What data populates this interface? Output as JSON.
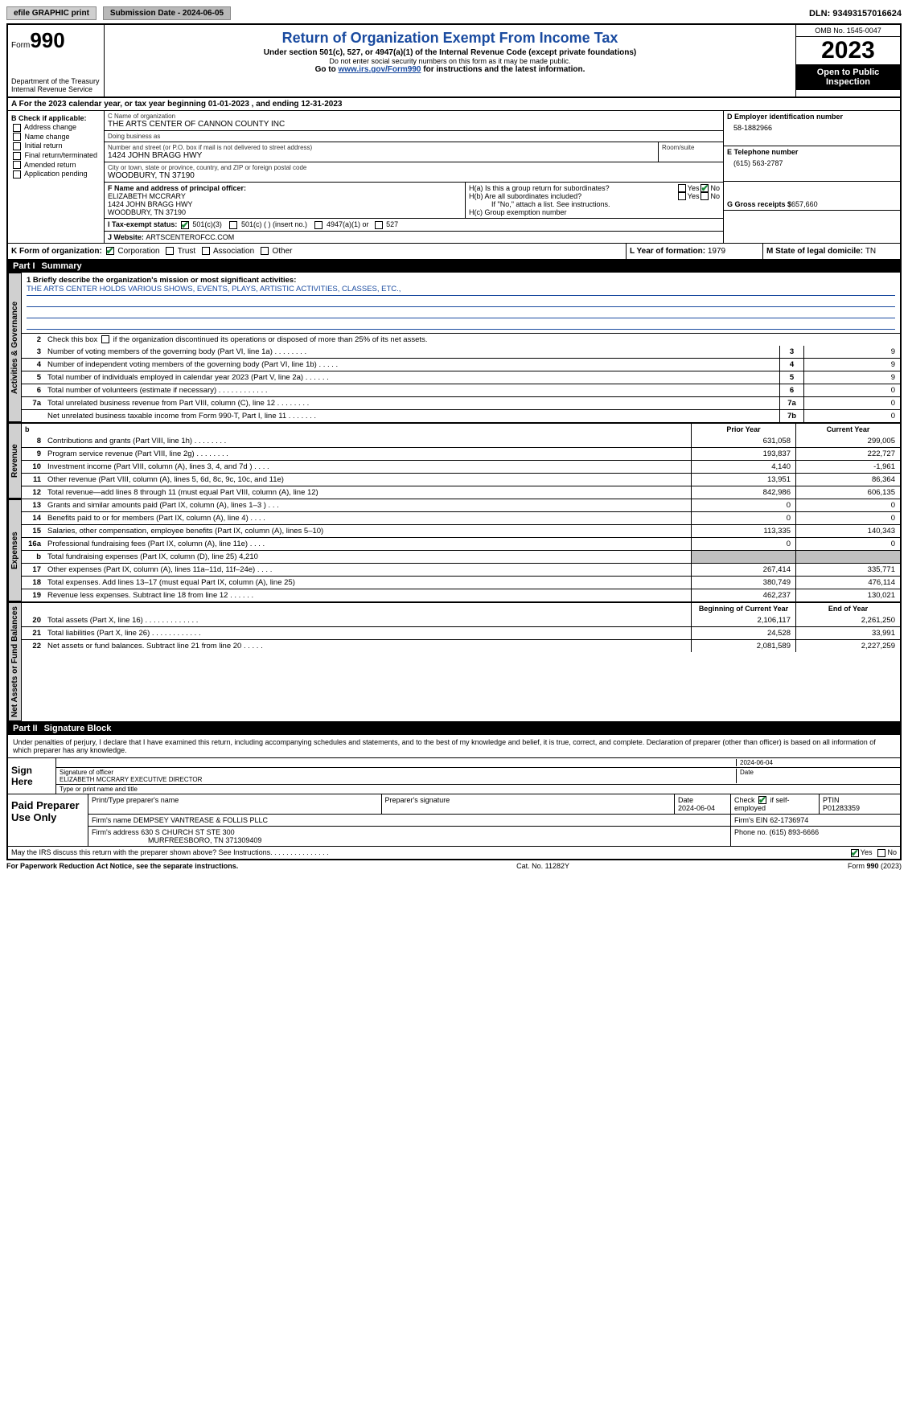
{
  "top": {
    "efile_btn": "efile GRAPHIC print",
    "submission_label": "Submission Date - 2024-06-05",
    "dln": "DLN: 93493157016624"
  },
  "header": {
    "form_word": "Form",
    "form_num": "990",
    "dept": "Department of the Treasury\nInternal Revenue Service",
    "title": "Return of Organization Exempt From Income Tax",
    "sub1": "Under section 501(c), 527, or 4947(a)(1) of the Internal Revenue Code (except private foundations)",
    "sub2": "Do not enter social security numbers on this form as it may be made public.",
    "goto_pre": "Go to ",
    "goto_link": "www.irs.gov/Form990",
    "goto_post": " for instructions and the latest information.",
    "omb": "OMB No. 1545-0047",
    "year": "2023",
    "open": "Open to Public Inspection"
  },
  "row_a": "A For the 2023 calendar year, or tax year beginning 01-01-2023     , and ending 12-31-2023",
  "col_b": {
    "title": "B Check if applicable:",
    "items": [
      "Address change",
      "Name change",
      "Initial return",
      "Final return/terminated",
      "Amended return",
      "Application pending"
    ]
  },
  "c": {
    "name_label": "C Name of organization",
    "name": "THE ARTS CENTER OF CANNON COUNTY INC",
    "dba_label": "Doing business as",
    "dba": "",
    "street_label": "Number and street (or P.O. box if mail is not delivered to street address)",
    "street": "1424 JOHN BRAGG HWY",
    "room_label": "Room/suite",
    "city_label": "City or town, state or province, country, and ZIP or foreign postal code",
    "city": "WOODBURY, TN  37190"
  },
  "right": {
    "d_label": "D Employer identification number",
    "d_val": "58-1882966",
    "e_label": "E Telephone number",
    "e_val": "(615) 563-2787",
    "g_label": "G Gross receipts $ ",
    "g_val": "657,660"
  },
  "f": {
    "label": "F  Name and address of principal officer:",
    "name": "ELIZABETH MCCRARY",
    "street": "1424 JOHN BRAGG HWY",
    "city": "WOODBURY, TN  37190"
  },
  "h": {
    "a_label": "H(a)  Is this a group return for subordinates?",
    "b_label": "H(b)  Are all subordinates included?",
    "b_note": "If \"No,\" attach a list. See instructions.",
    "c_label": "H(c)  Group exemption number "
  },
  "i": {
    "label": "I     Tax-exempt status:",
    "opts": [
      "501(c)(3)",
      "501(c) (  ) (insert no.)",
      "4947(a)(1) or",
      "527"
    ]
  },
  "j": {
    "label": "J     Website: ",
    "val": "ARTSCENTEROFCC.COM"
  },
  "k": {
    "label": "K Form of organization:",
    "opts": [
      "Corporation",
      "Trust",
      "Association",
      "Other"
    ]
  },
  "l": {
    "label": "L Year of formation: ",
    "val": "1979"
  },
  "m": {
    "label": "M State of legal domicile: ",
    "val": "TN"
  },
  "part1": {
    "num": "Part I",
    "title": "Summary"
  },
  "mission": {
    "q": "1   Briefly describe the organization's mission or most significant activities:",
    "text": "THE ARTS CENTER HOLDS VARIOUS SHOWS, EVENTS, PLAYS, ARTISTIC ACTIVITIES, CLASSES, ETC.,"
  },
  "line2": "Check this box       if the organization discontinued its operations or disposed of more than 25% of its net assets.",
  "sections": {
    "gov_label": "Activities & Governance",
    "rev_label": "Revenue",
    "exp_label": "Expenses",
    "net_label": "Net Assets or Fund Balances"
  },
  "gov_lines": [
    {
      "n": "3",
      "d": "Number of voting members of the governing body (Part VI, line 1a)   .    .    .    .    .    .    .    .",
      "b": "3",
      "v": "9"
    },
    {
      "n": "4",
      "d": "Number of independent voting members of the governing body (Part VI, line 1b)   .    .    .    .    .",
      "b": "4",
      "v": "9"
    },
    {
      "n": "5",
      "d": "Total number of individuals employed in calendar year 2023 (Part V, line 2a)   .    .    .    .    .    .",
      "b": "5",
      "v": "9"
    },
    {
      "n": "6",
      "d": "Total number of volunteers (estimate if necessary)    .    .    .    .    .    .    .    .    .    .    .    .",
      "b": "6",
      "v": "0"
    },
    {
      "n": "7a",
      "d": "Total unrelated business revenue from Part VIII, column (C), line 12   .    .    .    .    .    .    .    .",
      "b": "7a",
      "v": "0"
    },
    {
      "n": "",
      "d": "Net unrelated business taxable income from Form 990-T, Part I, line 11   .    .    .    .    .    .    .",
      "b": "7b",
      "v": "0"
    }
  ],
  "headers_py_cy": {
    "py": "Prior Year",
    "cy": "Current Year"
  },
  "rev_lines": [
    {
      "n": "8",
      "d": "Contributions and grants (Part VIII, line 1h)    .    .    .    .    .    .    .    .",
      "py": "631,058",
      "cy": "299,005"
    },
    {
      "n": "9",
      "d": "Program service revenue (Part VIII, line 2g)    .    .    .    .    .    .    .    .",
      "py": "193,837",
      "cy": "222,727"
    },
    {
      "n": "10",
      "d": "Investment income (Part VIII, column (A), lines 3, 4, and 7d )    .    .    .    .",
      "py": "4,140",
      "cy": "-1,961"
    },
    {
      "n": "11",
      "d": "Other revenue (Part VIII, column (A), lines 5, 6d, 8c, 9c, 10c, and 11e)",
      "py": "13,951",
      "cy": "86,364"
    },
    {
      "n": "12",
      "d": "Total revenue—add lines 8 through 11 (must equal Part VIII, column (A), line 12)",
      "py": "842,986",
      "cy": "606,135"
    }
  ],
  "exp_lines": [
    {
      "n": "13",
      "d": "Grants and similar amounts paid (Part IX, column (A), lines 1–3 )   .    .    .",
      "py": "0",
      "cy": "0"
    },
    {
      "n": "14",
      "d": "Benefits paid to or for members (Part IX, column (A), line 4)   .    .    .    .",
      "py": "0",
      "cy": "0"
    },
    {
      "n": "15",
      "d": "Salaries, other compensation, employee benefits (Part IX, column (A), lines 5–10)",
      "py": "113,335",
      "cy": "140,343"
    },
    {
      "n": "16a",
      "d": "Professional fundraising fees (Part IX, column (A), line 11e)   .    .    .    .",
      "py": "0",
      "cy": "0"
    },
    {
      "n": "b",
      "d": "Total fundraising expenses (Part IX, column (D), line 25) 4,210",
      "py": "",
      "cy": "",
      "shaded": true
    },
    {
      "n": "17",
      "d": "Other expenses (Part IX, column (A), lines 11a–11d, 11f–24e)   .    .    .    .",
      "py": "267,414",
      "cy": "335,771"
    },
    {
      "n": "18",
      "d": "Total expenses. Add lines 13–17 (must equal Part IX, column (A), line 25)",
      "py": "380,749",
      "cy": "476,114"
    },
    {
      "n": "19",
      "d": "Revenue less expenses. Subtract line 18 from line 12   .    .    .    .    .    .",
      "py": "462,237",
      "cy": "130,021"
    }
  ],
  "headers_boy_eoy": {
    "boy": "Beginning of Current Year",
    "eoy": "End of Year"
  },
  "net_lines": [
    {
      "n": "20",
      "d": "Total assets (Part X, line 16)   .    .    .    .    .    .    .    .    .    .    .    .    .",
      "py": "2,106,117",
      "cy": "2,261,250"
    },
    {
      "n": "21",
      "d": "Total liabilities (Part X, line 26)   .    .    .    .    .    .    .    .    .    .    .    .",
      "py": "24,528",
      "cy": "33,991"
    },
    {
      "n": "22",
      "d": "Net assets or fund balances. Subtract line 21 from line 20   .    .    .    .    .",
      "py": "2,081,589",
      "cy": "2,227,259"
    }
  ],
  "part2": {
    "num": "Part II",
    "title": "Signature Block"
  },
  "penalty": "Under penalties of perjury, I declare that I have examined this return, including accompanying schedules and statements, and to the best of my knowledge and belief, it is true, correct, and complete. Declaration of preparer (other than officer) is based on all information of which preparer has any knowledge.",
  "sign": {
    "left": "Sign Here",
    "date": "2024-06-04",
    "sig_label": "Signature of officer",
    "officer": "ELIZABETH MCCRARY  EXECUTIVE DIRECTOR",
    "name_label": "Type or print name and title",
    "date_label": "Date"
  },
  "prep": {
    "left": "Paid Preparer Use Only",
    "h1": "Print/Type preparer's name",
    "h2": "Preparer's signature",
    "h3": "Date",
    "h3v": "2024-06-04",
    "h4": "Check         if self-employed",
    "h5": "PTIN",
    "h5v": "P01283359",
    "firm_name_l": "Firm's name    ",
    "firm_name": "DEMPSEY VANTREASE & FOLLIS PLLC",
    "firm_ein_l": "Firm's EIN  ",
    "firm_ein": "62-1736974",
    "firm_addr_l": "Firm's address ",
    "firm_addr1": "630 S CHURCH ST STE 300",
    "firm_addr2": "MURFREESBORO, TN   371309409",
    "phone_l": "Phone no. ",
    "phone": "(615) 893-6666"
  },
  "discuss": "May the IRS discuss this return with the preparer shown above? See Instructions.   .    .    .    .    .    .    .    .    .    .    .    .    .    .",
  "footer": {
    "left": "For Paperwork Reduction Act Notice, see the separate instructions.",
    "center": "Cat. No. 11282Y",
    "right_pre": "Form ",
    "right_b": "990",
    "right_post": " (2023)"
  },
  "yes": "Yes",
  "no": "No"
}
